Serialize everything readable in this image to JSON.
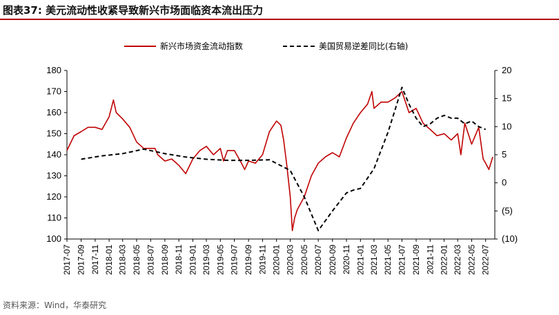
{
  "title": "图表37:  美元流动性收紧导致新兴市场面临资本流出压力",
  "source": "资料来源：Wind，华泰研究",
  "colors": {
    "series1": "#c00000",
    "series2": "#000000",
    "title_rule": "#b10000"
  },
  "chart_data": {
    "type": "line",
    "legend_placement": "top-center",
    "grid": false,
    "x_ticks": [
      "2017-07",
      "2017-09",
      "2017-11",
      "2018-01",
      "2018-03",
      "2018-05",
      "2018-07",
      "2018-09",
      "2018-11",
      "2019-01",
      "2019-03",
      "2019-05",
      "2019-07",
      "2019-09",
      "2019-11",
      "2020-01",
      "2020-03",
      "2020-05",
      "2020-07",
      "2020-09",
      "2020-11",
      "2021-01",
      "2021-03",
      "2021-05",
      "2021-07",
      "2021-09",
      "2021-11",
      "2022-01",
      "2022-03",
      "2022-05",
      "2022-07"
    ],
    "y_left": {
      "min": 100,
      "max": 180,
      "ticks": [
        "100",
        "110",
        "120",
        "130",
        "140",
        "150",
        "160",
        "170",
        "180"
      ]
    },
    "y_right": {
      "min": -10,
      "max": 20,
      "ticks": [
        "(10)",
        "(5)",
        "0",
        "5",
        "10",
        "15",
        "20"
      ]
    },
    "series": [
      {
        "name": "新兴市场资金流动指数",
        "axis": "left",
        "style": "solid",
        "x": [
          "2017-07-01",
          "2017-08-01",
          "2017-09-01",
          "2017-10-01",
          "2017-11-01",
          "2017-12-01",
          "2018-01-01",
          "2018-01-20",
          "2018-02-01",
          "2018-03-01",
          "2018-04-01",
          "2018-05-01",
          "2018-06-01",
          "2018-07-01",
          "2018-07-20",
          "2018-08-01",
          "2018-09-01",
          "2018-10-01",
          "2018-11-01",
          "2018-12-01",
          "2019-01-01",
          "2019-02-01",
          "2019-03-01",
          "2019-04-01",
          "2019-05-01",
          "2019-05-15",
          "2019-06-01",
          "2019-07-01",
          "2019-08-01",
          "2019-08-15",
          "2019-09-01",
          "2019-10-01",
          "2019-11-01",
          "2019-12-01",
          "2020-01-01",
          "2020-01-20",
          "2020-02-01",
          "2020-02-15",
          "2020-03-01",
          "2020-03-10",
          "2020-03-20",
          "2020-04-01",
          "2020-05-01",
          "2020-06-01",
          "2020-07-01",
          "2020-08-01",
          "2020-09-01",
          "2020-10-01",
          "2020-11-01",
          "2020-12-01",
          "2021-01-01",
          "2021-02-01",
          "2021-02-20",
          "2021-03-01",
          "2021-04-01",
          "2021-05-01",
          "2021-06-01",
          "2021-07-01",
          "2021-08-01",
          "2021-09-01",
          "2021-10-01",
          "2021-11-01",
          "2021-12-01",
          "2022-01-01",
          "2022-02-01",
          "2022-03-01",
          "2022-03-15",
          "2022-04-01",
          "2022-05-01",
          "2022-06-01",
          "2022-06-20",
          "2022-07-01",
          "2022-07-15",
          "2022-08-01"
        ],
        "values": [
          142,
          149,
          151,
          153,
          153,
          152,
          158,
          166,
          160,
          157,
          153,
          146,
          143,
          143,
          143,
          140,
          137,
          138,
          135,
          131,
          138,
          142,
          144,
          140,
          143,
          137,
          142,
          142,
          136,
          133,
          137,
          136,
          140,
          151,
          156,
          154,
          147,
          135,
          120,
          104,
          110,
          114,
          120,
          130,
          136,
          139,
          141,
          139,
          148,
          155,
          160,
          164,
          170,
          162,
          165,
          165,
          167,
          170,
          160,
          162,
          155,
          152,
          149,
          150,
          147,
          150,
          140,
          155,
          145,
          153,
          138,
          136,
          133,
          139
        ]
      },
      {
        "name": "美国贸易逆差同比(右轴)",
        "axis": "right",
        "style": "dashed",
        "x": [
          "2017-09-01",
          "2017-12-01",
          "2018-03-01",
          "2018-06-01",
          "2018-09-01",
          "2018-12-01",
          "2019-03-01",
          "2019-06-01",
          "2019-09-01",
          "2019-12-01",
          "2020-03-01",
          "2020-05-01",
          "2020-07-01",
          "2020-09-01",
          "2020-11-01",
          "2020-12-01",
          "2021-01-01",
          "2021-03-01",
          "2021-05-01",
          "2021-06-01",
          "2021-07-01",
          "2021-08-01",
          "2021-09-01",
          "2021-10-01",
          "2021-11-01",
          "2021-12-01",
          "2022-01-01",
          "2022-02-01",
          "2022-03-01",
          "2022-04-01",
          "2022-05-01",
          "2022-06-01",
          "2022-07-01"
        ],
        "values": [
          4.2,
          4.8,
          5.2,
          6.0,
          5.2,
          4.6,
          4.2,
          4.0,
          4.0,
          4.1,
          2.2,
          -2.5,
          -8.5,
          -5.0,
          -1.8,
          -1.3,
          -1.0,
          2.5,
          9.0,
          13.0,
          17.0,
          14.0,
          11.5,
          10.0,
          10.5,
          11.5,
          12.0,
          11.5,
          11.5,
          10.5,
          11.0,
          10.0,
          9.5
        ]
      }
    ]
  }
}
